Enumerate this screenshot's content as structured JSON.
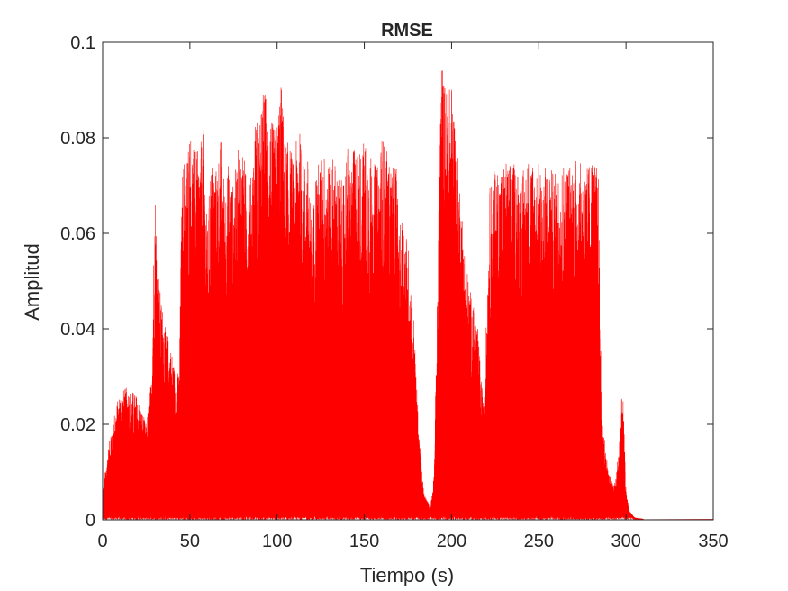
{
  "chart_data": {
    "type": "line",
    "title": "RMSE",
    "xlabel": "Tiempo (s)",
    "ylabel": "Amplitud",
    "xlim": [
      0,
      350
    ],
    "ylim": [
      0,
      0.1
    ],
    "xticks": [
      0,
      50,
      100,
      150,
      200,
      250,
      300,
      350
    ],
    "xtick_labels": [
      "0",
      "50",
      "100",
      "150",
      "200",
      "250",
      "300",
      "350"
    ],
    "yticks": [
      0,
      0.02,
      0.04,
      0.06,
      0.08,
      0.1
    ],
    "ytick_labels": [
      "0",
      "0.02",
      "0.04",
      "0.06",
      "0.08",
      "0.1"
    ],
    "grid": false,
    "legend": "none",
    "series": [
      {
        "color": "#ff0000",
        "envelope_x": [
          0,
          5,
          10,
          15,
          20,
          25,
          28,
          30,
          31,
          32,
          33,
          34,
          35,
          36,
          38,
          40,
          42,
          44,
          45,
          46,
          48,
          50,
          52,
          55,
          58,
          60,
          62,
          65,
          68,
          70,
          72,
          75,
          78,
          80,
          82,
          85,
          88,
          90,
          92,
          95,
          98,
          100,
          102,
          105,
          108,
          110,
          112,
          115,
          118,
          120,
          122,
          125,
          128,
          130,
          132,
          135,
          138,
          140,
          142,
          145,
          148,
          150,
          152,
          155,
          158,
          160,
          162,
          165,
          168,
          170,
          172,
          175,
          178,
          180,
          182,
          184,
          186,
          188,
          190,
          192,
          194,
          196,
          198,
          200,
          202,
          205,
          208,
          210,
          212,
          215,
          218,
          220,
          222,
          225,
          228,
          230,
          232,
          235,
          238,
          240,
          242,
          245,
          248,
          250,
          252,
          255,
          258,
          260,
          262,
          265,
          268,
          270,
          272,
          275,
          278,
          280,
          282,
          284,
          286,
          288,
          290,
          292,
          294,
          296,
          298,
          300,
          302,
          305,
          310,
          320,
          330,
          340,
          350
        ],
        "envelope_max": [
          0.006,
          0.02,
          0.027,
          0.028,
          0.026,
          0.02,
          0.03,
          0.071,
          0.06,
          0.05,
          0.048,
          0.045,
          0.045,
          0.04,
          0.038,
          0.035,
          0.03,
          0.032,
          0.06,
          0.076,
          0.077,
          0.083,
          0.078,
          0.077,
          0.082,
          0.06,
          0.076,
          0.074,
          0.081,
          0.07,
          0.075,
          0.07,
          0.079,
          0.08,
          0.073,
          0.072,
          0.086,
          0.082,
          0.091,
          0.088,
          0.082,
          0.084,
          0.093,
          0.08,
          0.078,
          0.074,
          0.085,
          0.075,
          0.076,
          0.06,
          0.074,
          0.076,
          0.078,
          0.074,
          0.077,
          0.073,
          0.07,
          0.08,
          0.075,
          0.079,
          0.078,
          0.08,
          0.079,
          0.075,
          0.074,
          0.081,
          0.079,
          0.074,
          0.078,
          0.06,
          0.065,
          0.058,
          0.045,
          0.028,
          0.015,
          0.006,
          0.004,
          0.003,
          0.01,
          0.05,
          0.098,
          0.092,
          0.09,
          0.092,
          0.085,
          0.07,
          0.055,
          0.05,
          0.046,
          0.04,
          0.025,
          0.042,
          0.07,
          0.074,
          0.074,
          0.076,
          0.075,
          0.075,
          0.074,
          0.074,
          0.073,
          0.078,
          0.074,
          0.075,
          0.072,
          0.076,
          0.073,
          0.073,
          0.074,
          0.076,
          0.075,
          0.076,
          0.076,
          0.074,
          0.074,
          0.077,
          0.075,
          0.074,
          0.025,
          0.016,
          0.01,
          0.008,
          0.008,
          0.016,
          0.029,
          0.006,
          0.002,
          0.0005,
          0.0002,
          0.0001,
          0.0001,
          0.0001,
          0.0001
        ]
      }
    ]
  }
}
